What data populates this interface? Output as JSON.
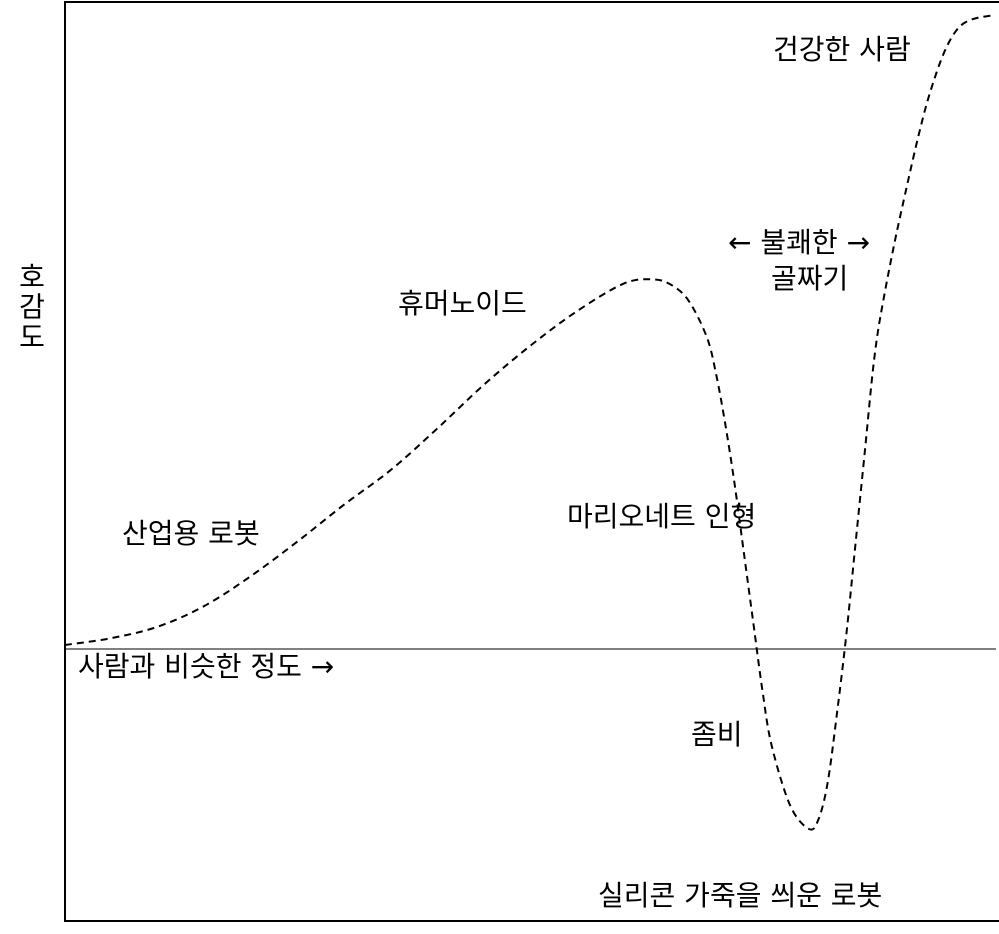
{
  "chart_data": {
    "type": "line",
    "ylabel": "호감도",
    "xlabel": "사람과 비슷한 정도",
    "xlabel_arrow": "→",
    "series": [
      {
        "style": "dashed",
        "x": [
          0,
          5,
          10,
          15,
          20,
          25,
          30,
          35,
          40,
          45,
          50,
          55,
          60,
          63,
          65,
          67,
          69,
          70,
          71,
          72,
          73,
          74,
          75,
          76,
          78,
          80,
          81,
          82,
          83,
          84,
          85,
          86,
          87,
          88,
          90,
          93,
          96,
          100
        ],
        "y": [
          0,
          1.5,
          4,
          8.5,
          15,
          22.5,
          30.5,
          38,
          47,
          56.5,
          65,
          72.5,
          78.5,
          79.5,
          78.5,
          75,
          67,
          59,
          48,
          35,
          20,
          5,
          -10,
          -22,
          -35,
          -40,
          -38,
          -30,
          -15,
          2,
          22,
          42,
          62,
          75,
          95,
          120,
          134,
          137
        ]
      }
    ],
    "annotations": [
      {
        "text": "산업용 로봇"
      },
      {
        "text": "휴머노이드"
      },
      {
        "text": "불쾌한",
        "arrows": true
      },
      {
        "text": "골짜기"
      },
      {
        "text": "마리오네트 인형"
      },
      {
        "text": "건강한 사람"
      },
      {
        "text": "좀비"
      },
      {
        "text": "실리콘 가죽을 씌운 로봇"
      }
    ],
    "arrow_left": "←",
    "arrow_right": "→",
    "xlim": [
      0,
      100
    ],
    "ylim": [
      -50,
      140
    ],
    "grid": false
  }
}
